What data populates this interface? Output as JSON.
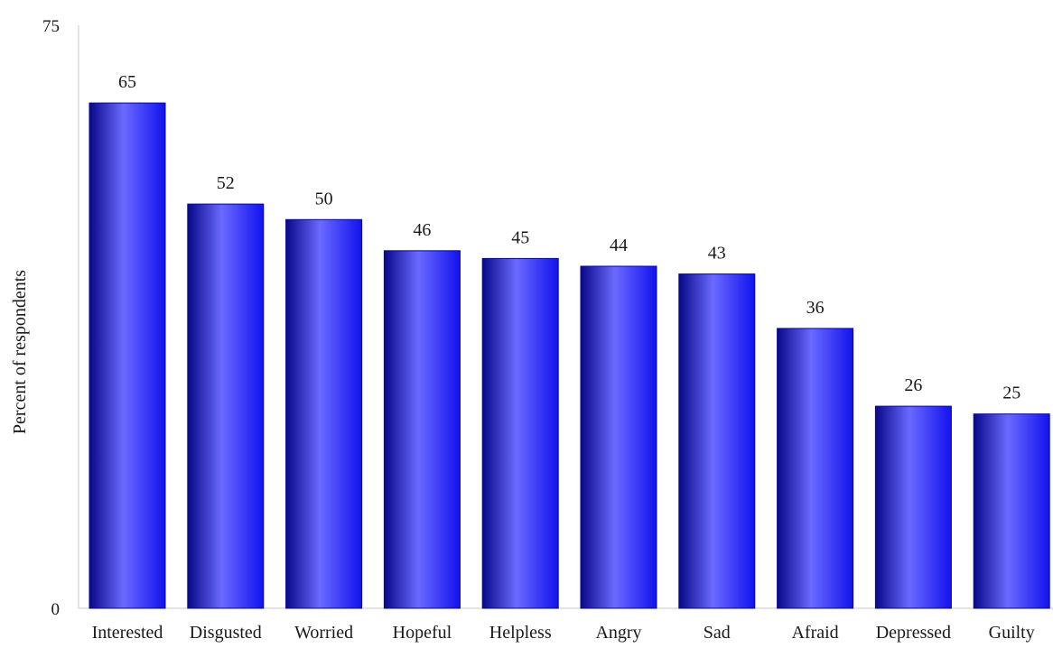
{
  "chart_data": {
    "type": "bar",
    "categories": [
      "Interested",
      "Disgusted",
      "Worried",
      "Hopeful",
      "Helpless",
      "Angry",
      "Sad",
      "Afraid",
      "Depressed",
      "Guilty"
    ],
    "values": [
      65,
      52,
      50,
      46,
      45,
      44,
      43,
      36,
      26,
      25
    ],
    "data_labels": [
      "65",
      "52",
      "50",
      "46",
      "45",
      "44",
      "43",
      "36",
      "26",
      "25"
    ],
    "ylabel": "Percent of respondents",
    "ylim": [
      0,
      75
    ],
    "yticks": [
      "0",
      "75"
    ],
    "grid": false,
    "legend": "none",
    "bar_color": "#1212ee",
    "bar_highlight": "#6a6aff",
    "bar_shadow": "#08088a"
  }
}
